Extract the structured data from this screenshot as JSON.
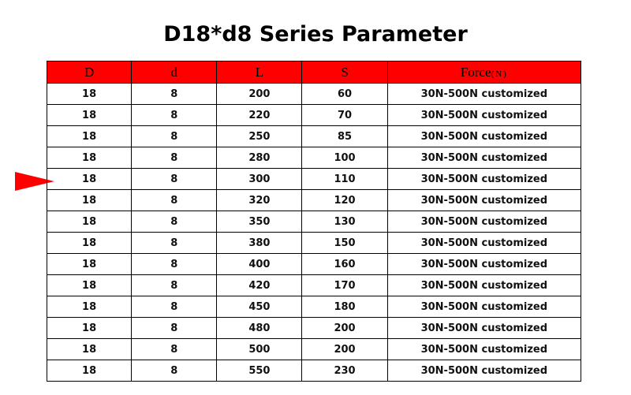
{
  "title": "D18*d8 Series Parameter",
  "colors": {
    "header_bg": "#ff0000",
    "pointer": "#ff0000"
  },
  "pointer_icon": "red-triangle-pointer",
  "table": {
    "headers": {
      "D": "D",
      "d": "d",
      "L": "L",
      "S": "S",
      "force": "Force",
      "force_unit": "(N)"
    },
    "rows": [
      {
        "D": "18",
        "d": "8",
        "L": "200",
        "S": "60",
        "force": "30N-500N customized"
      },
      {
        "D": "18",
        "d": "8",
        "L": "220",
        "S": "70",
        "force": "30N-500N customized"
      },
      {
        "D": "18",
        "d": "8",
        "L": "250",
        "S": "85",
        "force": "30N-500N customized"
      },
      {
        "D": "18",
        "d": "8",
        "L": "280",
        "S": "100",
        "force": "30N-500N customized"
      },
      {
        "D": "18",
        "d": "8",
        "L": "300",
        "S": "110",
        "force": "30N-500N customized"
      },
      {
        "D": "18",
        "d": "8",
        "L": "320",
        "S": "120",
        "force": "30N-500N customized"
      },
      {
        "D": "18",
        "d": "8",
        "L": "350",
        "S": "130",
        "force": "30N-500N customized"
      },
      {
        "D": "18",
        "d": "8",
        "L": "380",
        "S": "150",
        "force": "30N-500N customized"
      },
      {
        "D": "18",
        "d": "8",
        "L": "400",
        "S": "160",
        "force": "30N-500N customized"
      },
      {
        "D": "18",
        "d": "8",
        "L": "420",
        "S": "170",
        "force": "30N-500N customized"
      },
      {
        "D": "18",
        "d": "8",
        "L": "450",
        "S": "180",
        "force": "30N-500N customized"
      },
      {
        "D": "18",
        "d": "8",
        "L": "480",
        "S": "200",
        "force": "30N-500N customized"
      },
      {
        "D": "18",
        "d": "8",
        "L": "500",
        "S": "200",
        "force": "30N-500N customized"
      },
      {
        "D": "18",
        "d": "8",
        "L": "550",
        "S": "230",
        "force": "30N-500N customized"
      }
    ]
  }
}
